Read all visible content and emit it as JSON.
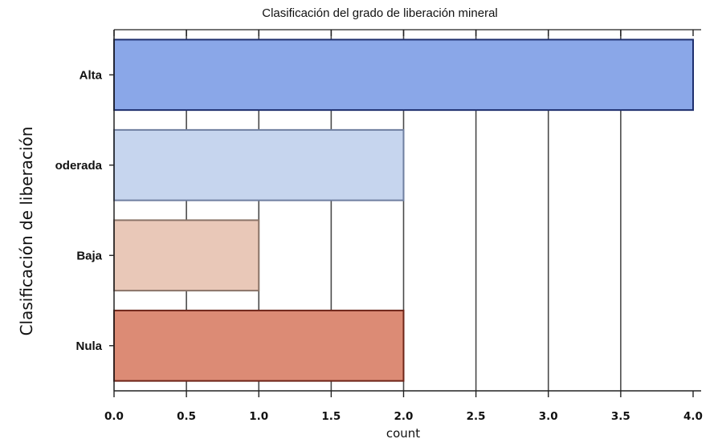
{
  "chart_data": {
    "type": "bar",
    "orientation": "horizontal",
    "title": "Clasificación del grado de liberación mineral",
    "xlabel": "count",
    "ylabel": "Clasificación de liberación",
    "categories": [
      "Alta",
      "oderada",
      "Baja",
      "Nula"
    ],
    "values": [
      4,
      2,
      1,
      2
    ],
    "colors": [
      "#8aa7e8",
      "#c6d5ee",
      "#e9c8b8",
      "#dc8b75"
    ],
    "edge_colors": [
      "#1e2f6e",
      "#6f7fa0",
      "#8a7468",
      "#6e2418"
    ],
    "xlim": [
      0,
      4
    ],
    "xticks": [
      "0.0",
      "0.5",
      "1.0",
      "1.5",
      "2.0",
      "2.5",
      "3.0",
      "3.5",
      "4.0"
    ],
    "grid": true
  }
}
